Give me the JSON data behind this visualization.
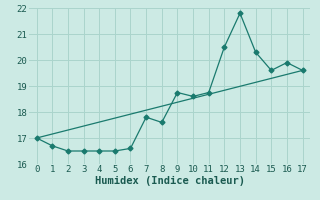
{
  "xlabel": "Humidex (Indice chaleur)",
  "background_color": "#cceae4",
  "line_color": "#1a7a6e",
  "series1_x": [
    0,
    1,
    2,
    3,
    4,
    5,
    6,
    7,
    8,
    9,
    10,
    11,
    12,
    13,
    14,
    15,
    16,
    17
  ],
  "series1_y": [
    17.0,
    16.7,
    16.5,
    16.5,
    16.5,
    16.5,
    16.6,
    17.8,
    17.6,
    18.75,
    18.6,
    18.75,
    20.5,
    21.8,
    20.3,
    19.6,
    19.9,
    19.6
  ],
  "trend_x": [
    0,
    17
  ],
  "trend_y": [
    17.0,
    19.6
  ],
  "xlim": [
    -0.5,
    17.5
  ],
  "ylim": [
    16.0,
    22.0
  ],
  "yticks": [
    16,
    17,
    18,
    19,
    20,
    21,
    22
  ],
  "xticks": [
    0,
    1,
    2,
    3,
    4,
    5,
    6,
    7,
    8,
    9,
    10,
    11,
    12,
    13,
    14,
    15,
    16,
    17
  ],
  "grid_color": "#aad4cc",
  "marker": "D",
  "markersize": 2.5,
  "linewidth": 0.9,
  "tick_color": "#1a5a50",
  "tick_fontsize": 6.5,
  "xlabel_fontsize": 7.5
}
